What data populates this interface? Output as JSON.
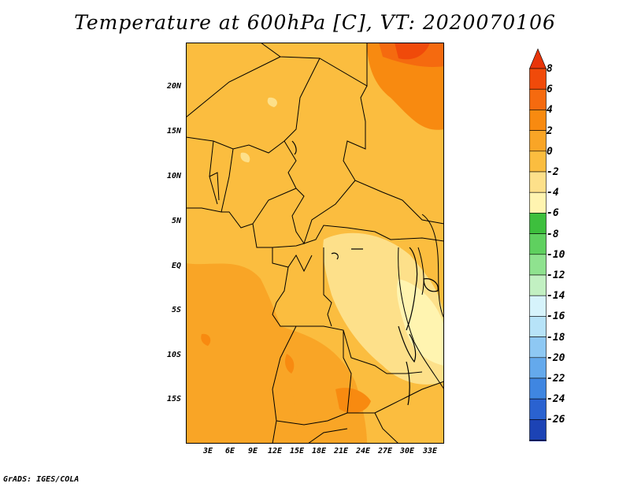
{
  "title": "Temperature at 600hPa [C], VT: 2020070106",
  "credit": "GrADS: IGES/COLA",
  "map": {
    "region": "Central and West Africa",
    "lat_labels": [
      "20N",
      "15N",
      "10N",
      "5N",
      "EQ",
      "5S",
      "10S",
      "15S"
    ],
    "lon_labels": [
      "3E",
      "6E",
      "9E",
      "12E",
      "15E",
      "18E",
      "21E",
      "24E",
      "27E",
      "30E",
      "33E"
    ],
    "land_border_color": "#000000"
  },
  "colorbar": {
    "levels": [
      "8",
      "6",
      "4",
      "2",
      "0",
      "-2",
      "-4",
      "-6",
      "-8",
      "-10",
      "-12",
      "-14",
      "-16",
      "-18",
      "-20",
      "-22",
      "-24",
      "-26"
    ],
    "colors": [
      "#f04a0a",
      "#f56a0f",
      "#f88a10",
      "#f9a526",
      "#fbbd3f",
      "#fde08a",
      "#fff4b0",
      "#3dbf3d",
      "#5fd05f",
      "#8fe28f",
      "#c2f0c2",
      "#d6f3fb",
      "#b7e3f8",
      "#8ec8f3",
      "#64a9ec",
      "#3f86e1",
      "#2a62d0",
      "#1c43b5",
      "#102a8e"
    ],
    "top_arrow_color": "#e8350a",
    "bottom_arrow_color": "#dedcf8"
  }
}
